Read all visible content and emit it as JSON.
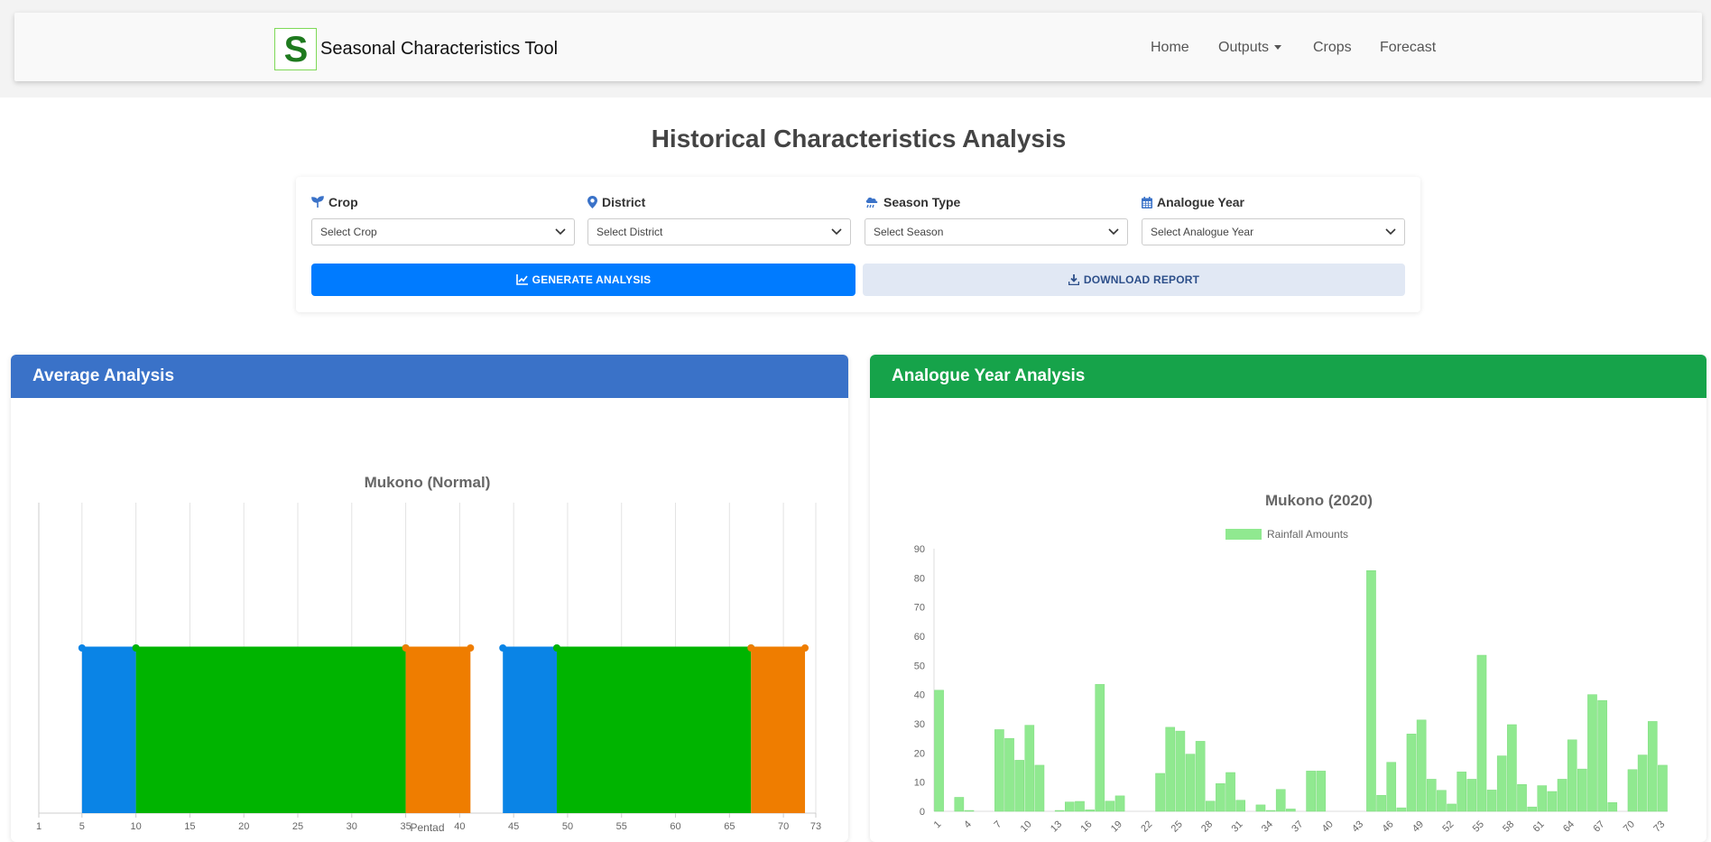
{
  "brand": {
    "name": "Seasonal Characteristics Tool",
    "logo_letter": "S"
  },
  "nav": {
    "home": "Home",
    "outputs": "Outputs",
    "crops": "Crops",
    "forecast": "Forecast"
  },
  "page_title": "Historical Characteristics Analysis",
  "form": {
    "crop": {
      "label": "Crop",
      "placeholder": "Select Crop",
      "icon": "seedling-icon"
    },
    "district": {
      "label": "District",
      "placeholder": "Select District",
      "icon": "map-marker-icon"
    },
    "season": {
      "label": "Season Type",
      "placeholder": "Select Season",
      "icon": "cloud-rain-icon"
    },
    "analogue": {
      "label": "Analogue Year",
      "placeholder": "Select Analogue Year",
      "icon": "calendar-icon"
    },
    "generate": "GENERATE ANALYSIS",
    "download": "DOWNLOAD REPORT"
  },
  "panels": {
    "average": "Average Analysis",
    "analogue": "Analogue Year Analysis"
  },
  "colors": {
    "planting": "#0a84e6",
    "growing": "#00b400",
    "harvest": "#ef7d00",
    "rain": "#90e990"
  },
  "chart_data": [
    {
      "type": "bar",
      "title": "Mukono (Normal)",
      "xlabel": "Pentad",
      "ylabel": "",
      "xlim": [
        1,
        73
      ],
      "x_ticks": [
        1,
        5,
        10,
        15,
        20,
        25,
        30,
        35,
        40,
        45,
        50,
        55,
        60,
        65,
        70,
        73
      ],
      "grid": true,
      "segments": [
        {
          "start": 5,
          "end": 10,
          "color": "#0a84e6"
        },
        {
          "start": 10,
          "end": 35,
          "color": "#00b400"
        },
        {
          "start": 35,
          "end": 41,
          "color": "#ef7d00"
        },
        {
          "start": 44,
          "end": 49,
          "color": "#0a84e6"
        },
        {
          "start": 49,
          "end": 67,
          "color": "#00b400"
        },
        {
          "start": 67,
          "end": 72,
          "color": "#ef7d00"
        }
      ]
    },
    {
      "type": "bar",
      "title": "Mukono (2020)",
      "legend": "Rainfall Amounts",
      "legend_position": "top",
      "ylim": [
        0,
        90
      ],
      "y_ticks": [
        0,
        10,
        20,
        30,
        40,
        50,
        60,
        70,
        80,
        90
      ],
      "x_ticks": [
        1,
        4,
        7,
        10,
        13,
        16,
        19,
        22,
        25,
        28,
        31,
        34,
        37,
        40,
        43,
        46,
        49,
        52,
        55,
        58,
        61,
        64,
        67,
        70,
        73
      ],
      "categories": [
        1,
        2,
        3,
        4,
        5,
        6,
        7,
        8,
        9,
        10,
        11,
        12,
        13,
        14,
        15,
        16,
        17,
        18,
        19,
        20,
        21,
        22,
        23,
        24,
        25,
        26,
        27,
        28,
        29,
        30,
        31,
        32,
        33,
        34,
        35,
        36,
        37,
        38,
        39,
        40,
        41,
        42,
        43,
        44,
        45,
        46,
        47,
        48,
        49,
        50,
        51,
        52,
        53,
        54,
        55,
        56,
        57,
        58,
        59,
        60,
        61,
        62,
        63,
        64,
        65,
        66,
        67,
        68,
        69,
        70,
        71,
        72,
        73
      ],
      "values": [
        41.5,
        0,
        4.8,
        0.3,
        0,
        0,
        28,
        25,
        17.5,
        29.5,
        15.8,
        0,
        0.3,
        3.2,
        3.4,
        0.5,
        43.5,
        3.5,
        5.3,
        0,
        0,
        0,
        13,
        28.8,
        27.5,
        19.6,
        24,
        3.5,
        9.5,
        13.3,
        3.8,
        0,
        2.2,
        0.3,
        7.5,
        0.8,
        0,
        13.8,
        13.8,
        0,
        0,
        0,
        0,
        82.5,
        5.5,
        16.8,
        1.2,
        26.5,
        31.3,
        11,
        7.2,
        2.5,
        13.5,
        11,
        53.5,
        7.3,
        19,
        29.7,
        9.2,
        1.5,
        8.8,
        6.8,
        11,
        24.5,
        14.5,
        40,
        38,
        3,
        0,
        14.3,
        19.3,
        30.8,
        15.8
      ]
    }
  ]
}
